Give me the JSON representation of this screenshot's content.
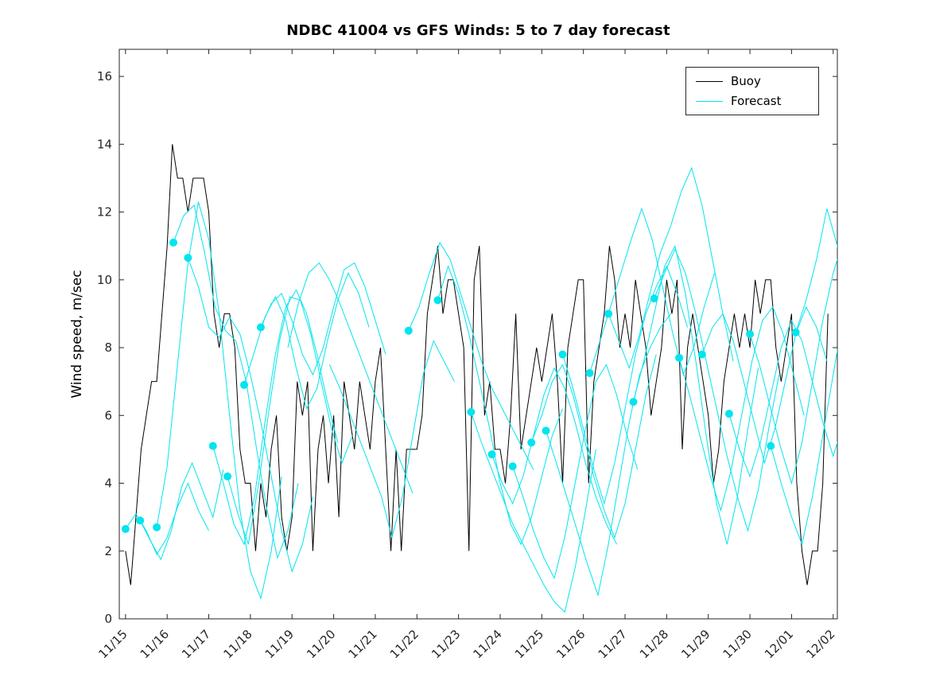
{
  "chart_data": {
    "type": "line",
    "title": "NDBC 41004 vs GFS Winds: 5 to 7 day forecast",
    "xlabel": "",
    "ylabel": "Wind speed, m/sec",
    "x_unit": "date (month/day)",
    "xlim": [
      -0.15,
      17.1
    ],
    "ylim": [
      0,
      16.8
    ],
    "grid": false,
    "x_ticks": [
      0,
      1,
      2,
      3,
      4,
      5,
      6,
      7,
      8,
      9,
      10,
      11,
      12,
      13,
      14,
      15,
      16,
      17
    ],
    "x_tick_labels": [
      "11/15",
      "11/16",
      "11/17",
      "11/18",
      "11/19",
      "11/20",
      "11/21",
      "11/22",
      "11/23",
      "11/24",
      "11/25",
      "11/26",
      "11/27",
      "11/28",
      "11/29",
      "11/30",
      "12/01",
      "12/02"
    ],
    "y_ticks": [
      0,
      2,
      4,
      6,
      8,
      10,
      12,
      14,
      16
    ],
    "legend": {
      "position": "top-right",
      "items": [
        {
          "label": "Buoy",
          "color": "#000000"
        },
        {
          "label": "Forecast",
          "color": "#00e5ee"
        }
      ]
    },
    "series": {
      "buoy": {
        "name": "Buoy",
        "color": "#000000",
        "x_start": 0.0,
        "x_step": 0.125,
        "values": [
          2,
          1,
          3,
          5,
          6,
          7,
          7,
          9,
          11,
          14,
          13,
          13,
          12,
          13,
          13,
          13,
          12,
          9,
          8,
          9,
          9,
          8,
          5,
          4,
          4,
          2,
          4,
          3,
          5,
          6,
          3,
          2,
          3,
          7,
          6,
          7,
          2,
          5,
          6,
          4,
          6,
          3,
          7,
          6,
          5,
          7,
          6,
          5,
          7,
          8,
          5,
          2,
          5,
          2,
          5,
          5,
          5,
          6,
          9,
          10,
          11,
          9,
          10,
          10,
          9,
          8,
          2,
          10,
          11,
          6,
          7,
          5,
          5,
          4,
          6,
          9,
          5,
          6,
          7,
          8,
          7,
          8,
          9,
          7,
          4,
          8,
          9,
          10,
          10,
          4,
          7,
          8,
          9,
          11,
          10,
          8,
          9,
          8,
          10,
          9,
          8,
          6,
          7,
          8,
          10,
          9,
          10,
          5,
          8,
          9,
          8,
          7,
          6,
          4,
          5,
          7,
          8,
          9,
          8,
          9,
          8,
          10,
          9,
          10,
          10,
          8,
          7,
          8,
          9,
          4,
          2,
          1,
          2,
          2,
          4,
          9
        ]
      },
      "forecast": {
        "name": "Forecast",
        "color": "#00e5ee",
        "x_step": 0.25,
        "marker": "filled-circle",
        "marker_radius": 5,
        "traces": [
          {
            "start": 0.0,
            "dot": true,
            "values": [
              2.65,
              3.1,
              2.6,
              1.9,
              2.4,
              3.3,
              4.0,
              3.2,
              2.6
            ]
          },
          {
            "start": 0.35,
            "dot": true,
            "values": [
              2.9,
              2.3,
              1.75,
              2.6,
              3.9,
              4.6,
              3.8,
              3.0,
              4.4
            ]
          },
          {
            "start": 0.75,
            "dot": true,
            "values": [
              2.7,
              4.5,
              7.5,
              10.5,
              12.3,
              11.2,
              9.0,
              6.0,
              3.2,
              1.4,
              0.6,
              2.0,
              4.2
            ]
          },
          {
            "start": 1.15,
            "dot": true,
            "values": [
              11.1,
              11.9,
              12.2,
              10.8,
              9.2,
              8.5,
              8.2,
              7.0,
              5.0,
              3.2,
              1.8,
              2.6,
              4.0
            ]
          },
          {
            "start": 1.5,
            "dot": true,
            "values": [
              10.65,
              9.8,
              8.6,
              8.3,
              8.9,
              8.4,
              7.2,
              5.8,
              4.2,
              2.6,
              1.4,
              2.2,
              3.6
            ]
          },
          {
            "start": 2.1,
            "dot": true,
            "values": [
              5.1,
              4.0,
              2.8,
              2.2,
              3.6,
              5.8,
              7.8,
              9.2,
              9.7,
              9.0,
              7.8,
              6.4,
              5.2
            ]
          },
          {
            "start": 2.45,
            "dot": true,
            "values": [
              4.2,
              3.1,
              2.2,
              4.0,
              6.2,
              8.2,
              9.5,
              9.4,
              8.4,
              7.0,
              5.6,
              4.6,
              5.4
            ]
          },
          {
            "start": 2.85,
            "dot": true,
            "values": [
              6.9,
              7.9,
              8.9,
              9.5,
              8.8,
              7.4,
              6.2,
              6.8,
              8.2,
              9.4,
              10.2,
              9.6,
              8.6
            ]
          },
          {
            "start": 3.25,
            "dot": true,
            "values": [
              8.6,
              9.3,
              9.6,
              8.8,
              7.8,
              7.2,
              8.0,
              9.2,
              10.3,
              10.5,
              9.8,
              8.8,
              7.8
            ]
          },
          {
            "start": 3.9,
            "dot": false,
            "values": [
              8.0,
              9.3,
              10.2,
              10.5,
              10.0,
              9.3,
              8.5,
              7.7,
              6.9,
              6.1,
              5.3,
              4.5,
              3.7
            ]
          },
          {
            "start": 4.9,
            "dot": false,
            "values": [
              7.5,
              6.8,
              6.0,
              5.2,
              4.4,
              3.6,
              2.4,
              3.6,
              5.4,
              7.2,
              8.2,
              7.6,
              7.0
            ]
          },
          {
            "start": 6.8,
            "dot": true,
            "values": [
              8.5,
              9.2,
              10.2,
              11.1,
              10.6,
              9.6,
              8.6,
              7.6,
              6.8,
              6.2,
              5.6,
              5.0,
              4.4
            ]
          },
          {
            "start": 7.5,
            "dot": true,
            "values": [
              9.4,
              10.4,
              9.6,
              8.4,
              7.0,
              5.6,
              4.0,
              2.8,
              2.2,
              3.0,
              4.2,
              5.4,
              6.2
            ]
          },
          {
            "start": 8.3,
            "dot": true,
            "values": [
              6.1,
              5.2,
              4.4,
              3.6,
              2.8,
              2.2,
              1.6,
              1.0,
              0.5,
              0.2,
              1.5,
              3.2,
              5.0
            ]
          },
          {
            "start": 8.8,
            "dot": true,
            "values": [
              4.85,
              4.0,
              3.4,
              4.2,
              5.4,
              6.6,
              7.4,
              6.8,
              5.8,
              4.6,
              3.6,
              2.8,
              2.2
            ]
          },
          {
            "start": 9.3,
            "dot": true,
            "values": [
              4.5,
              3.6,
              2.6,
              1.8,
              1.2,
              2.4,
              4.0,
              5.6,
              7.0,
              7.5,
              6.6,
              5.4,
              4.4
            ]
          },
          {
            "start": 9.75,
            "dot": true,
            "values": [
              5.2,
              6.0,
              7.0,
              7.5,
              6.6,
              5.4,
              4.2,
              3.2,
              2.4,
              3.4,
              5.0,
              6.6,
              7.8
            ]
          },
          {
            "start": 10.1,
            "dot": true,
            "values": [
              5.55,
              4.6,
              3.6,
              2.6,
              1.6,
              0.7,
              2.2,
              4.0,
              5.8,
              7.2,
              8.0,
              8.6,
              9.0
            ]
          },
          {
            "start": 10.5,
            "dot": true,
            "values": [
              7.8,
              6.8,
              5.6,
              4.4,
              3.4,
              4.6,
              6.2,
              7.8,
              9.0,
              9.8,
              10.4,
              9.6,
              8.6
            ]
          },
          {
            "start": 11.15,
            "dot": true,
            "values": [
              7.25,
              8.2,
              9.2,
              10.2,
              11.2,
              12.1,
              11.2,
              9.8,
              8.4,
              7.2,
              8.0,
              9.2,
              10.2
            ]
          },
          {
            "start": 11.6,
            "dot": true,
            "values": [
              9.0,
              8.2,
              7.4,
              8.4,
              9.6,
              10.8,
              11.6,
              12.6,
              13.3,
              12.2,
              10.6,
              9.0,
              7.6
            ]
          },
          {
            "start": 12.2,
            "dot": true,
            "values": [
              6.4,
              7.6,
              9.0,
              10.4,
              11.0,
              9.6,
              7.6,
              5.4,
              3.4,
              2.2,
              3.6,
              5.6,
              7.4
            ]
          },
          {
            "start": 12.7,
            "dot": true,
            "values": [
              9.45,
              10.2,
              10.9,
              10.2,
              9.0,
              7.6,
              6.2,
              4.8,
              3.6,
              2.6,
              3.8,
              5.6,
              7.2
            ]
          },
          {
            "start": 13.3,
            "dot": true,
            "values": [
              7.7,
              6.6,
              5.4,
              4.2,
              3.2,
              4.4,
              6.0,
              7.6,
              8.8,
              9.2,
              8.4,
              7.2,
              6.0
            ]
          },
          {
            "start": 13.85,
            "dot": true,
            "values": [
              7.8,
              8.6,
              9.0,
              8.2,
              7.0,
              5.8,
              4.6,
              5.6,
              7.0,
              8.4,
              9.2,
              8.6,
              7.6
            ]
          },
          {
            "start": 14.5,
            "dot": true,
            "values": [
              6.05,
              5.0,
              4.2,
              5.2,
              6.6,
              8.0,
              8.8,
              8.2,
              7.0,
              5.8,
              4.8,
              5.8,
              7.2
            ]
          },
          {
            "start": 15.0,
            "dot": true,
            "values": [
              8.4,
              7.4,
              6.2,
              5.0,
              4.0,
              5.2,
              7.0,
              8.8,
              10.2,
              11.2,
              10.4,
              9.0,
              7.6
            ]
          },
          {
            "start": 15.5,
            "dot": true,
            "values": [
              5.1,
              4.0,
              3.0,
              2.2,
              3.6,
              5.4,
              7.2,
              9.0,
              10.4,
              11.0,
              9.8,
              8.4,
              7.0
            ]
          },
          {
            "start": 16.1,
            "dot": true,
            "values": [
              8.45,
              9.4,
              10.6,
              12.1,
              11.0,
              8.4,
              6.8
            ]
          }
        ]
      }
    }
  }
}
